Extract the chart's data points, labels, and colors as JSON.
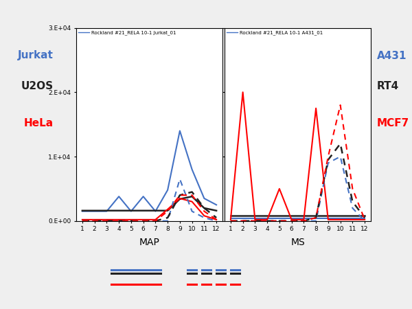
{
  "left_title": "Rockland #21_RELA 10-1 Jurkat_01",
  "right_title": "Rockland #21_RELA 10-1 A431_01",
  "ylim": [
    0,
    30000
  ],
  "yticks": [
    0,
    10000,
    20000,
    30000
  ],
  "ytick_labels": [
    "0.E+00",
    "1.E+04",
    "2.E+04",
    "3.E+04"
  ],
  "xticks": [
    1,
    2,
    3,
    4,
    5,
    6,
    7,
    8,
    9,
    10,
    11,
    12
  ],
  "xlabel_left": "MAP",
  "xlabel_right": "MS",
  "left_labels": [
    "Jurkat",
    "U2OS",
    "HeLa"
  ],
  "right_labels": [
    "A431",
    "RT4",
    "MCF7"
  ],
  "label_colors": [
    "#4472C4",
    "#222222",
    "#FF0000"
  ],
  "map_blue_solid": [
    1500,
    1500,
    1500,
    3800,
    1500,
    3800,
    1500,
    4800,
    14000,
    8000,
    3500,
    2500
  ],
  "map_black_solid": [
    1600,
    1600,
    1600,
    1600,
    1600,
    1600,
    1600,
    1600,
    3400,
    3800,
    2000,
    1600
  ],
  "map_red_solid": [
    200,
    200,
    200,
    200,
    200,
    200,
    200,
    1800,
    3500,
    3000,
    800,
    200
  ],
  "map_blue_dashed": [
    0,
    0,
    0,
    0,
    0,
    0,
    0,
    0,
    6500,
    1500,
    500,
    0
  ],
  "map_black_dashed": [
    0,
    0,
    0,
    0,
    0,
    0,
    0,
    500,
    4000,
    4500,
    2000,
    500
  ],
  "map_red_dashed": [
    0,
    0,
    0,
    0,
    0,
    0,
    0,
    1500,
    4000,
    4000,
    1500,
    200
  ],
  "ms_blue_solid": [
    400,
    400,
    400,
    400,
    400,
    400,
    400,
    400,
    400,
    400,
    400,
    400
  ],
  "ms_black_solid": [
    800,
    800,
    800,
    800,
    800,
    800,
    800,
    800,
    800,
    800,
    800,
    800
  ],
  "ms_red_solid": [
    200,
    20000,
    200,
    200,
    5000,
    200,
    200,
    17500,
    200,
    200,
    200,
    200
  ],
  "ms_blue_dashed": [
    0,
    0,
    0,
    0,
    0,
    0,
    0,
    0,
    9000,
    10000,
    2000,
    0
  ],
  "ms_black_dashed": [
    0,
    0,
    0,
    0,
    0,
    0,
    0,
    500,
    9500,
    12000,
    3000,
    500
  ],
  "ms_red_dashed": [
    0,
    0,
    0,
    0,
    0,
    0,
    0,
    500,
    10000,
    18000,
    5000,
    200
  ],
  "blue": "#4472C4",
  "black": "#222222",
  "red": "#FF0000",
  "white": "#FFFFFF",
  "fig_bg": "#EFEFEF"
}
